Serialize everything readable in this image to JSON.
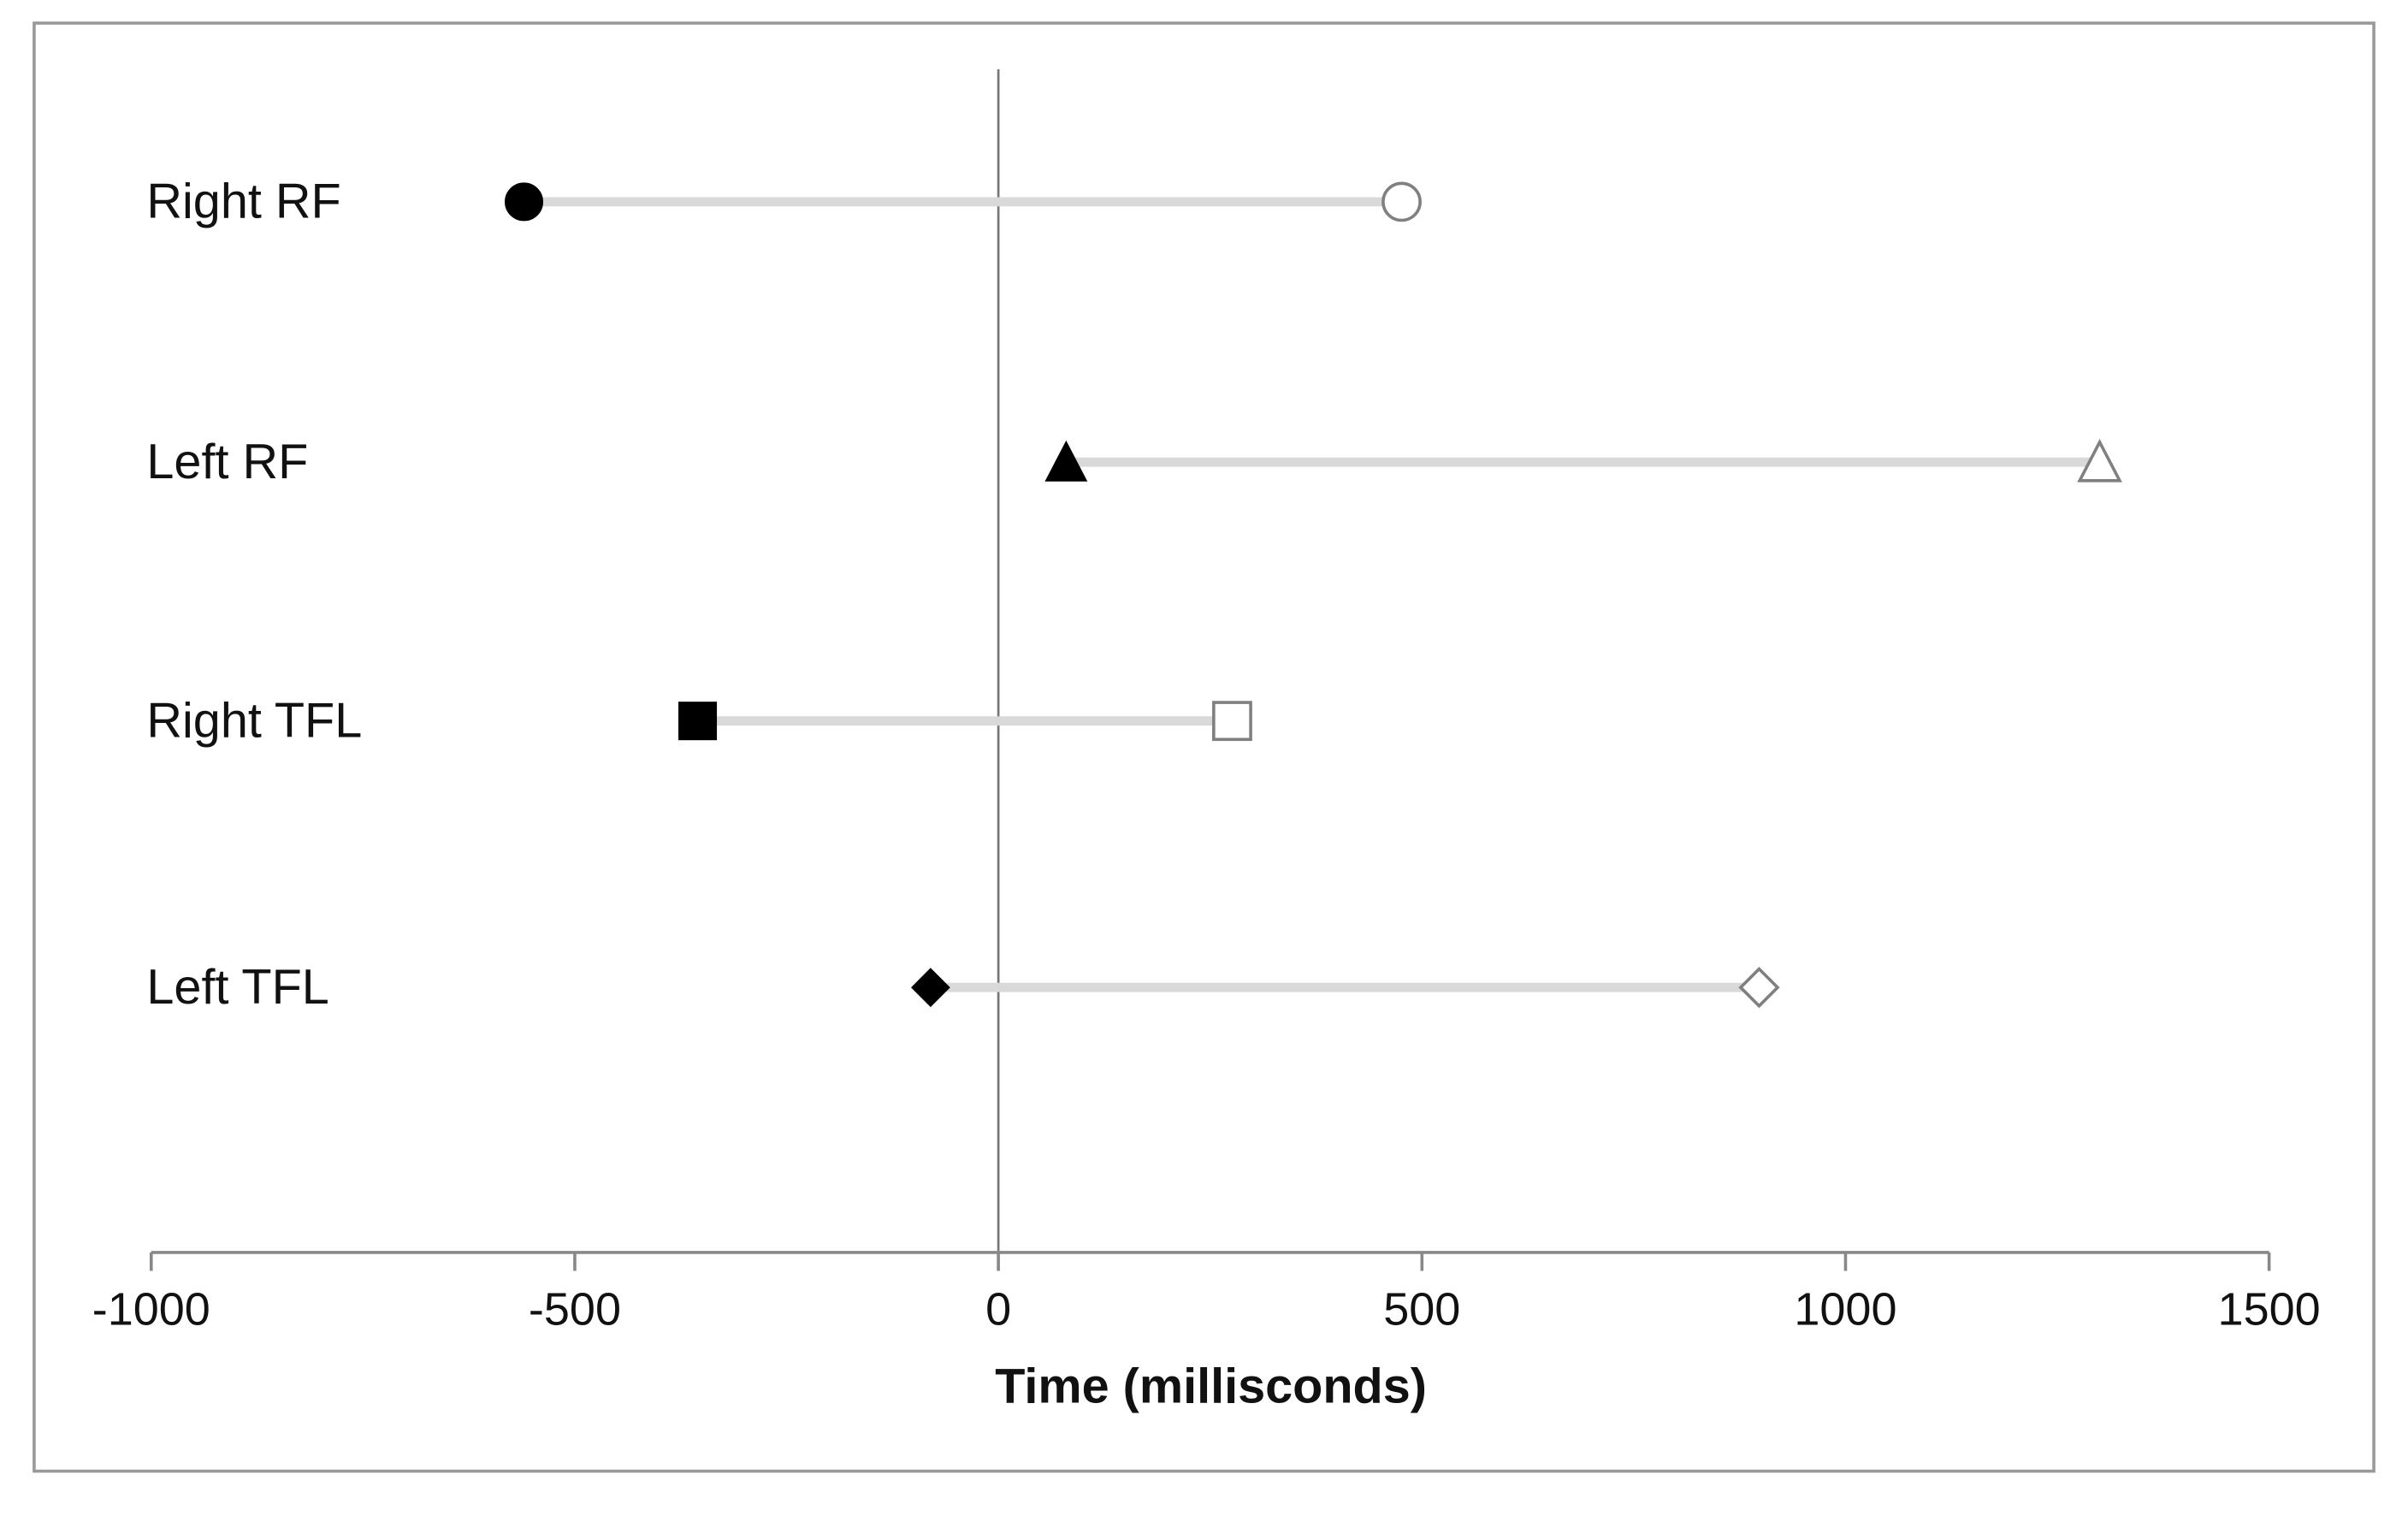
{
  "chart_data": {
    "type": "dumbbell",
    "categories": [
      "Right RF",
      "Left RF",
      "Right TFL",
      "Left TFL"
    ],
    "markers": [
      "circle",
      "triangle",
      "square",
      "diamond"
    ],
    "series": [
      {
        "color": "#000000",
        "fill": "filled",
        "values": [
          -560,
          80,
          -355,
          -80
        ]
      },
      {
        "color": "#808080",
        "fill": "open",
        "values": [
          476,
          1300,
          276,
          898
        ]
      }
    ],
    "connector_color": "#d9d9d9",
    "x_label": "Time (millisconds)",
    "xlim": [
      -1000,
      1500
    ],
    "xticks": [
      -1000,
      -500,
      0,
      500,
      1000,
      1500
    ]
  }
}
